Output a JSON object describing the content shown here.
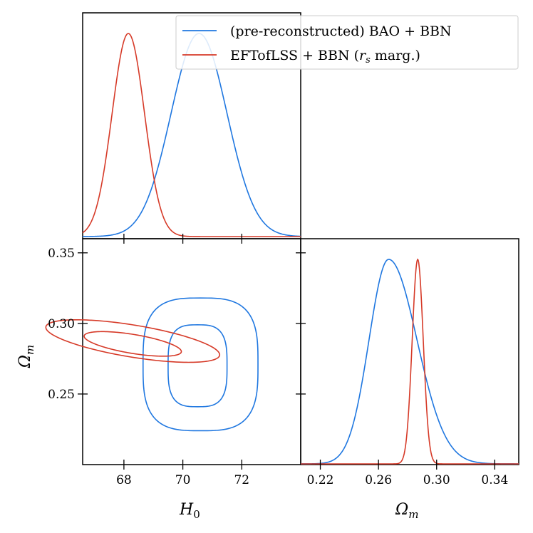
{
  "chart_data": {
    "type": "triangle-corner-plot",
    "parameters": [
      "H0",
      "Omega_m"
    ],
    "colors": {
      "bao": "#1f77e0",
      "eft": "#d63a28"
    },
    "legend": {
      "position": "top-right",
      "entries": [
        {
          "name": "(pre-reconstructed) BAO + BBN",
          "color": "#1f77e0"
        },
        {
          "name": "EFTofLSS + BBN (r_s marg.)",
          "color": "#d63a28"
        }
      ],
      "label1": "(pre-reconstructed) BAO + BBN",
      "label2_prefix": "EFTofLSS + BBN (",
      "label2_var": "r",
      "label2_sub": "s",
      "label2_suffix": " marg.)"
    },
    "axes": {
      "h0": {
        "range": [
          66.6,
          74.0
        ],
        "ticks": [
          68,
          70,
          72
        ],
        "tick_labels": [
          "68",
          "70",
          "72"
        ]
      },
      "om": {
        "range": [
          0.2,
          0.36
        ],
        "ticks": [
          0.25,
          0.3,
          0.35
        ],
        "tick_labels": [
          "0.25",
          "0.30",
          "0.35"
        ]
      },
      "om_bottom": {
        "range": [
          0.2065,
          0.3565
        ],
        "ticks": [
          0.22,
          0.26,
          0.3,
          0.34
        ],
        "tick_labels": [
          "0.22",
          "0.26",
          "0.30",
          "0.34"
        ]
      },
      "xlabel_left": "H",
      "xlabel_left_sub": "0",
      "xlabel_right": "Ω",
      "xlabel_right_sub": "m",
      "ylabel": "Ω",
      "ylabel_sub": "m"
    },
    "series": [
      {
        "name": "(pre-reconstructed) BAO + BBN",
        "color": "#1f77e0",
        "h0_posterior": {
          "mean": 70.55,
          "sigma": 0.95
        },
        "om_posterior": {
          "peak": 0.267,
          "sigma_left": 0.0135,
          "sigma_right": 0.0195
        },
        "contours": [
          {
            "level": "68%",
            "center": [
              70.5,
              0.27
            ],
            "h0_halfwidth": 1.0,
            "om_halfwidth": 0.029
          },
          {
            "level": "95%",
            "center": [
              70.6,
              0.271
            ],
            "h0_halfwidth": 1.95,
            "om_halfwidth": 0.047
          }
        ]
      },
      {
        "name": "EFTofLSS + BBN (r_s marg.)",
        "color": "#d63a28",
        "h0_posterior": {
          "mean": 68.15,
          "sigma": 0.55
        },
        "om_posterior": {
          "peak": 0.287,
          "sigma": 0.0038
        },
        "contours": [
          {
            "level": "68%",
            "center": [
              68.3,
              0.2855
            ],
            "h0_halfwidth": 1.65,
            "om_halfwidth": 0.0068,
            "slope": -0.0033
          },
          {
            "level": "95%",
            "center": [
              68.3,
              0.2875
            ],
            "h0_halfwidth": 2.95,
            "om_halfwidth": 0.0115,
            "slope": -0.0033
          }
        ]
      }
    ]
  }
}
